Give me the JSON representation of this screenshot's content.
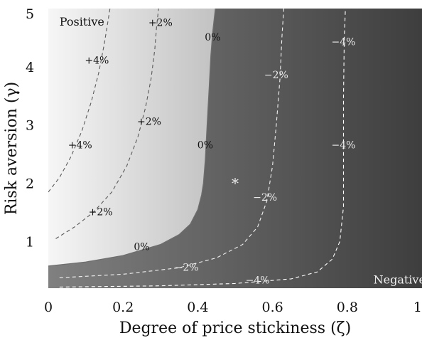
{
  "chart_data": {
    "type": "heatmap",
    "title": "",
    "xlabel": "Degree of price stickiness (ζ)",
    "ylabel": "Risk aversion (γ)",
    "xlim": [
      0,
      1
    ],
    "ylim": [
      0.2,
      5
    ],
    "xticks": [
      "0",
      "0.2",
      "0.4",
      "0.6",
      "0.8",
      "1"
    ],
    "yticks": [
      "1",
      "2",
      "3",
      "4",
      "5"
    ],
    "grid": false,
    "region_labels": [
      {
        "text": "Positive",
        "x": 0.03,
        "y": 4.78
      },
      {
        "text": "Negative",
        "x": 0.87,
        "y": 0.35
      }
    ],
    "boundary_0pct": {
      "color": "#6e6e6e",
      "points": [
        [
          0.0,
          0.58
        ],
        [
          0.1,
          0.65
        ],
        [
          0.2,
          0.76
        ],
        [
          0.3,
          0.95
        ],
        [
          0.35,
          1.12
        ],
        [
          0.38,
          1.3
        ],
        [
          0.4,
          1.55
        ],
        [
          0.41,
          1.8
        ],
        [
          0.415,
          2.0
        ],
        [
          0.42,
          2.4
        ],
        [
          0.425,
          3.0
        ],
        [
          0.43,
          3.6
        ],
        [
          0.435,
          4.2
        ],
        [
          0.44,
          4.6
        ],
        [
          0.447,
          5.0
        ]
      ]
    },
    "contours": [
      {
        "level": "+4%",
        "color": "#5a5a5a",
        "points": [
          [
            0.0,
            1.85
          ],
          [
            0.03,
            2.1
          ],
          [
            0.06,
            2.45
          ],
          [
            0.09,
            2.9
          ],
          [
            0.115,
            3.4
          ],
          [
            0.135,
            3.9
          ],
          [
            0.15,
            4.4
          ],
          [
            0.16,
            4.8
          ],
          [
            0.165,
            5.0
          ]
        ]
      },
      {
        "level": "+2%",
        "color": "#5a5a5a",
        "points": [
          [
            0.02,
            1.05
          ],
          [
            0.07,
            1.25
          ],
          [
            0.12,
            1.5
          ],
          [
            0.17,
            1.85
          ],
          [
            0.21,
            2.3
          ],
          [
            0.24,
            2.8
          ],
          [
            0.26,
            3.3
          ],
          [
            0.275,
            3.8
          ],
          [
            0.285,
            4.3
          ],
          [
            0.29,
            4.7
          ],
          [
            0.295,
            5.0
          ]
        ]
      },
      {
        "level": "-2%",
        "color": "#f2f2f2",
        "points": [
          [
            0.03,
            0.38
          ],
          [
            0.2,
            0.44
          ],
          [
            0.35,
            0.55
          ],
          [
            0.45,
            0.72
          ],
          [
            0.52,
            0.95
          ],
          [
            0.56,
            1.25
          ],
          [
            0.585,
            1.7
          ],
          [
            0.6,
            2.3
          ],
          [
            0.61,
            3.0
          ],
          [
            0.62,
            3.8
          ],
          [
            0.625,
            4.5
          ],
          [
            0.63,
            5.0
          ]
        ]
      },
      {
        "level": "-4%",
        "color": "#ffffff",
        "points": [
          [
            0.03,
            0.22
          ],
          [
            0.3,
            0.24
          ],
          [
            0.5,
            0.28
          ],
          [
            0.65,
            0.36
          ],
          [
            0.72,
            0.48
          ],
          [
            0.76,
            0.7
          ],
          [
            0.78,
            1.0
          ],
          [
            0.79,
            1.6
          ],
          [
            0.79,
            2.5
          ],
          [
            0.79,
            3.5
          ],
          [
            0.792,
            4.5
          ],
          [
            0.795,
            5.0
          ]
        ]
      }
    ],
    "contour_labels": [
      {
        "text": "+2%",
        "x": 0.3,
        "y": 4.75,
        "color": "#111111"
      },
      {
        "text": "+4%",
        "x": 0.13,
        "y": 4.1,
        "color": "#111111"
      },
      {
        "text": "+2%",
        "x": 0.27,
        "y": 3.05,
        "color": "#111111"
      },
      {
        "text": "+4%",
        "x": 0.085,
        "y": 2.65,
        "color": "#111111"
      },
      {
        "text": "+2%",
        "x": 0.14,
        "y": 1.5,
        "color": "#111111"
      },
      {
        "text": "0%",
        "x": 0.44,
        "y": 4.5,
        "color": "#111111"
      },
      {
        "text": "0%",
        "x": 0.42,
        "y": 2.65,
        "color": "#111111"
      },
      {
        "text": "0%",
        "x": 0.25,
        "y": 0.9,
        "color": "#111111"
      },
      {
        "text": "−4%",
        "x": 0.79,
        "y": 4.42,
        "color": "#ececec"
      },
      {
        "text": "−2%",
        "x": 0.61,
        "y": 3.85,
        "color": "#ececec"
      },
      {
        "text": "−4%",
        "x": 0.79,
        "y": 2.65,
        "color": "#ececec"
      },
      {
        "text": "−2%",
        "x": 0.58,
        "y": 1.75,
        "color": "#ececec"
      },
      {
        "text": "−2%",
        "x": 0.37,
        "y": 0.55,
        "color": "#ececec"
      },
      {
        "text": "−4%",
        "x": 0.56,
        "y": 0.33,
        "color": "#ececec"
      }
    ],
    "marker": {
      "symbol": "*",
      "x": 0.5,
      "y": 2.0,
      "color": "#e8e8e8"
    }
  }
}
